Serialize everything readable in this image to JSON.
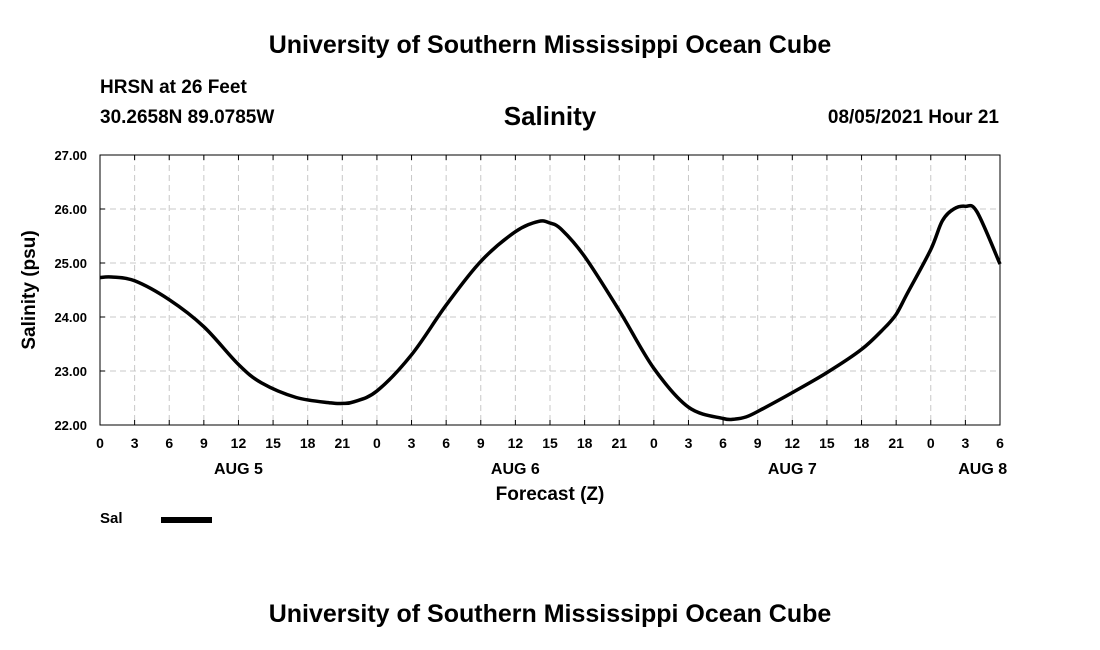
{
  "header": {
    "top_title": "University of Southern Mississippi Ocean Cube",
    "station": "HRSN at 26 Feet",
    "coords": "30.2658N  89.0785W",
    "datetime": "08/05/2021 Hour 21",
    "bottom_title": "University of Southern Mississippi Ocean Cube"
  },
  "legend": {
    "label": "Sal",
    "color": "#000000"
  },
  "chart_data": {
    "type": "line",
    "title": "Salinity",
    "xlabel": "Forecast (Z)",
    "ylabel": "Salinity (psu)",
    "ylim": [
      22.0,
      27.0
    ],
    "yticks": [
      "22.00",
      "23.00",
      "24.00",
      "25.00",
      "26.00",
      "27.00"
    ],
    "x_range_hours": [
      0,
      78
    ],
    "x_tick_step_hours": 3,
    "x_tick_labels": [
      "0",
      "3",
      "6",
      "9",
      "12",
      "15",
      "18",
      "21",
      "0",
      "3",
      "6",
      "9",
      "12",
      "15",
      "18",
      "21",
      "0",
      "3",
      "6",
      "9",
      "12",
      "15",
      "18",
      "21",
      "0",
      "3",
      "6"
    ],
    "day_labels": [
      {
        "label": "AUG 5",
        "hour": 12
      },
      {
        "label": "AUG 6",
        "hour": 36
      },
      {
        "label": "AUG 7",
        "hour": 60
      },
      {
        "label": "AUG 8",
        "hour": 76.5
      }
    ],
    "grid": true,
    "series": [
      {
        "name": "Sal",
        "x": [
          0,
          1,
          3,
          6,
          9,
          12,
          14,
          17,
          20,
          21,
          22,
          24,
          27,
          30,
          33,
          36,
          38,
          39,
          40,
          42,
          45,
          48,
          51,
          54,
          55,
          56,
          57,
          60,
          63,
          66,
          68,
          69,
          70,
          72,
          73,
          74,
          75,
          76,
          78
        ],
        "y": [
          24.73,
          24.74,
          24.67,
          24.32,
          23.82,
          23.12,
          22.78,
          22.51,
          22.41,
          22.4,
          22.43,
          22.63,
          23.3,
          24.22,
          25.03,
          25.58,
          25.77,
          25.74,
          25.62,
          25.12,
          24.12,
          23.05,
          22.33,
          22.12,
          22.11,
          22.15,
          22.25,
          22.6,
          22.97,
          23.4,
          23.8,
          24.05,
          24.45,
          25.25,
          25.78,
          26.0,
          26.05,
          25.95,
          24.98
        ]
      }
    ]
  }
}
